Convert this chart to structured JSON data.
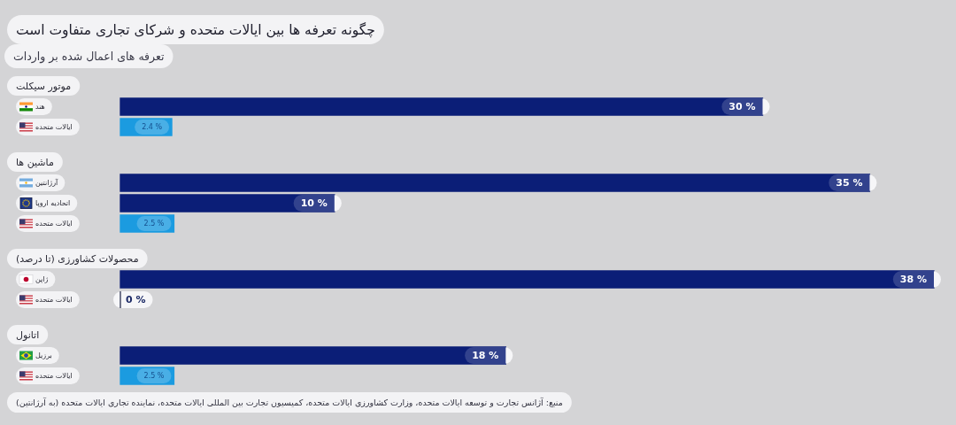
{
  "chart_data": [
    {
      "type": "other",
      "title": "چگونه تعرفه ها بین ایالات متحده و شرکای تجاری متفاوت است",
      "subtitle": "تعرفه های اعمال شده بر واردات"
    },
    {
      "type": "bar",
      "orientation": "horizontal",
      "title": "موتور سیکلت",
      "categories": [
        "هند",
        "ایالات متحده"
      ],
      "values": [
        30,
        2.4
      ],
      "colors": [
        "#0b1e77",
        "#1b9be0"
      ],
      "value_labels": [
        "30 %",
        "2.4 %"
      ],
      "tick_labels": "y"
    },
    {
      "type": "bar",
      "orientation": "horizontal",
      "title": "ماشین ها",
      "categories": [
        "آرژانتین",
        "اتحادیه اروپا",
        "ایالات متحده"
      ],
      "values": [
        35,
        10,
        2.5
      ],
      "colors": [
        "#0b1e77",
        "#0b1e77",
        "#1b9be0"
      ],
      "value_labels": [
        "35 %",
        "10 %",
        "2.5 %"
      ],
      "tick_labels": "y"
    },
    {
      "type": "bar",
      "orientation": "horizontal",
      "title": "محصولات کشاورزی (تا درصد)",
      "categories": [
        "ژاپن",
        "ایالات متحده"
      ],
      "values": [
        38,
        0
      ],
      "colors": [
        "#0b1e77",
        "#2b3150"
      ],
      "value_labels": [
        "38 %",
        "0 %"
      ],
      "tick_labels": "y"
    },
    {
      "type": "bar",
      "orientation": "horizontal",
      "title": "اتانول",
      "categories": [
        "برزیل",
        "ایالات متحده"
      ],
      "values": [
        18,
        2.5
      ],
      "colors": [
        "#0b1e77",
        "#1b9be0"
      ],
      "value_labels": [
        "18 %",
        "2.5 %"
      ],
      "tick_labels": "y",
      "annotations": [
        "منبع: آژانس تجارت و توسعه ایالات متحده، وزارت کشاورزی ایالات متحده، کمیسیون تجارت بین المللی ایالات متحده، نماینده تجاری ایالات متحده (به آرژانتین)"
      ]
    }
  ]
}
